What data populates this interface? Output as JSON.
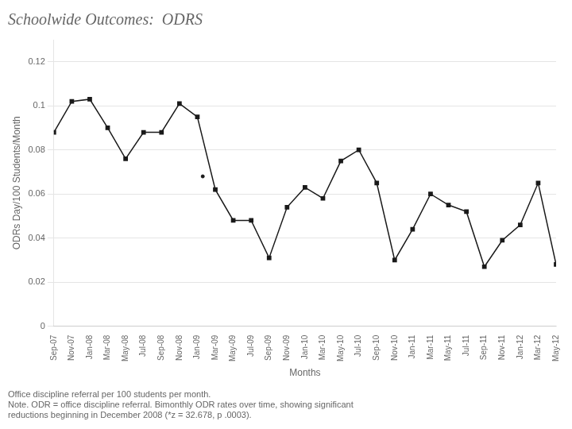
{
  "chart_data": {
    "type": "line",
    "title": "Schoolwide Outcomes:  ODRS",
    "x_label": "Months",
    "y_label": "ODRs Day/100 Students/Month",
    "categories": [
      "Sep-07",
      "Nov-07",
      "Jan-08",
      "Mar-08",
      "May-08",
      "Jul-08",
      "Sep-08",
      "Nov-08",
      "Jan-09",
      "Mar-09",
      "May-09",
      "Jul-09",
      "Sep-09",
      "Nov-09",
      "Jan-10",
      "Mar-10",
      "May-10",
      "Jul-10",
      "Sep-10",
      "Nov-10",
      "Jan-11",
      "Mar-11",
      "May-11",
      "Jul-11",
      "Sep-11",
      "Nov-11",
      "Jan-12",
      "Mar-12",
      "May-12"
    ],
    "values": [
      0.088,
      0.102,
      0.103,
      0.09,
      0.076,
      0.088,
      0.088,
      0.101,
      0.095,
      0.062,
      0.048,
      0.048,
      0.031,
      0.054,
      0.063,
      0.058,
      0.075,
      0.08,
      0.065,
      0.03,
      0.044,
      0.06,
      0.055,
      0.052,
      0.027,
      0.039,
      0.046,
      0.065,
      0.028
    ],
    "color": "#1a1a1a",
    "marker": "square",
    "isolated_points": [
      {
        "x": 8.3,
        "y": 0.068
      }
    ],
    "ylim": [
      0,
      0.13
    ],
    "yticks": [
      0,
      0.02,
      0.04,
      0.06,
      0.08,
      0.1,
      0.12
    ],
    "grid": "y",
    "notes": [
      "Office discipline referral per 100 students per month.",
      "Note. ODR = office discipline referral. Bimonthly ODR rates over time, showing significant",
      "reductions beginning in December 2008 (*z = 32.678, p .0003)."
    ]
  }
}
